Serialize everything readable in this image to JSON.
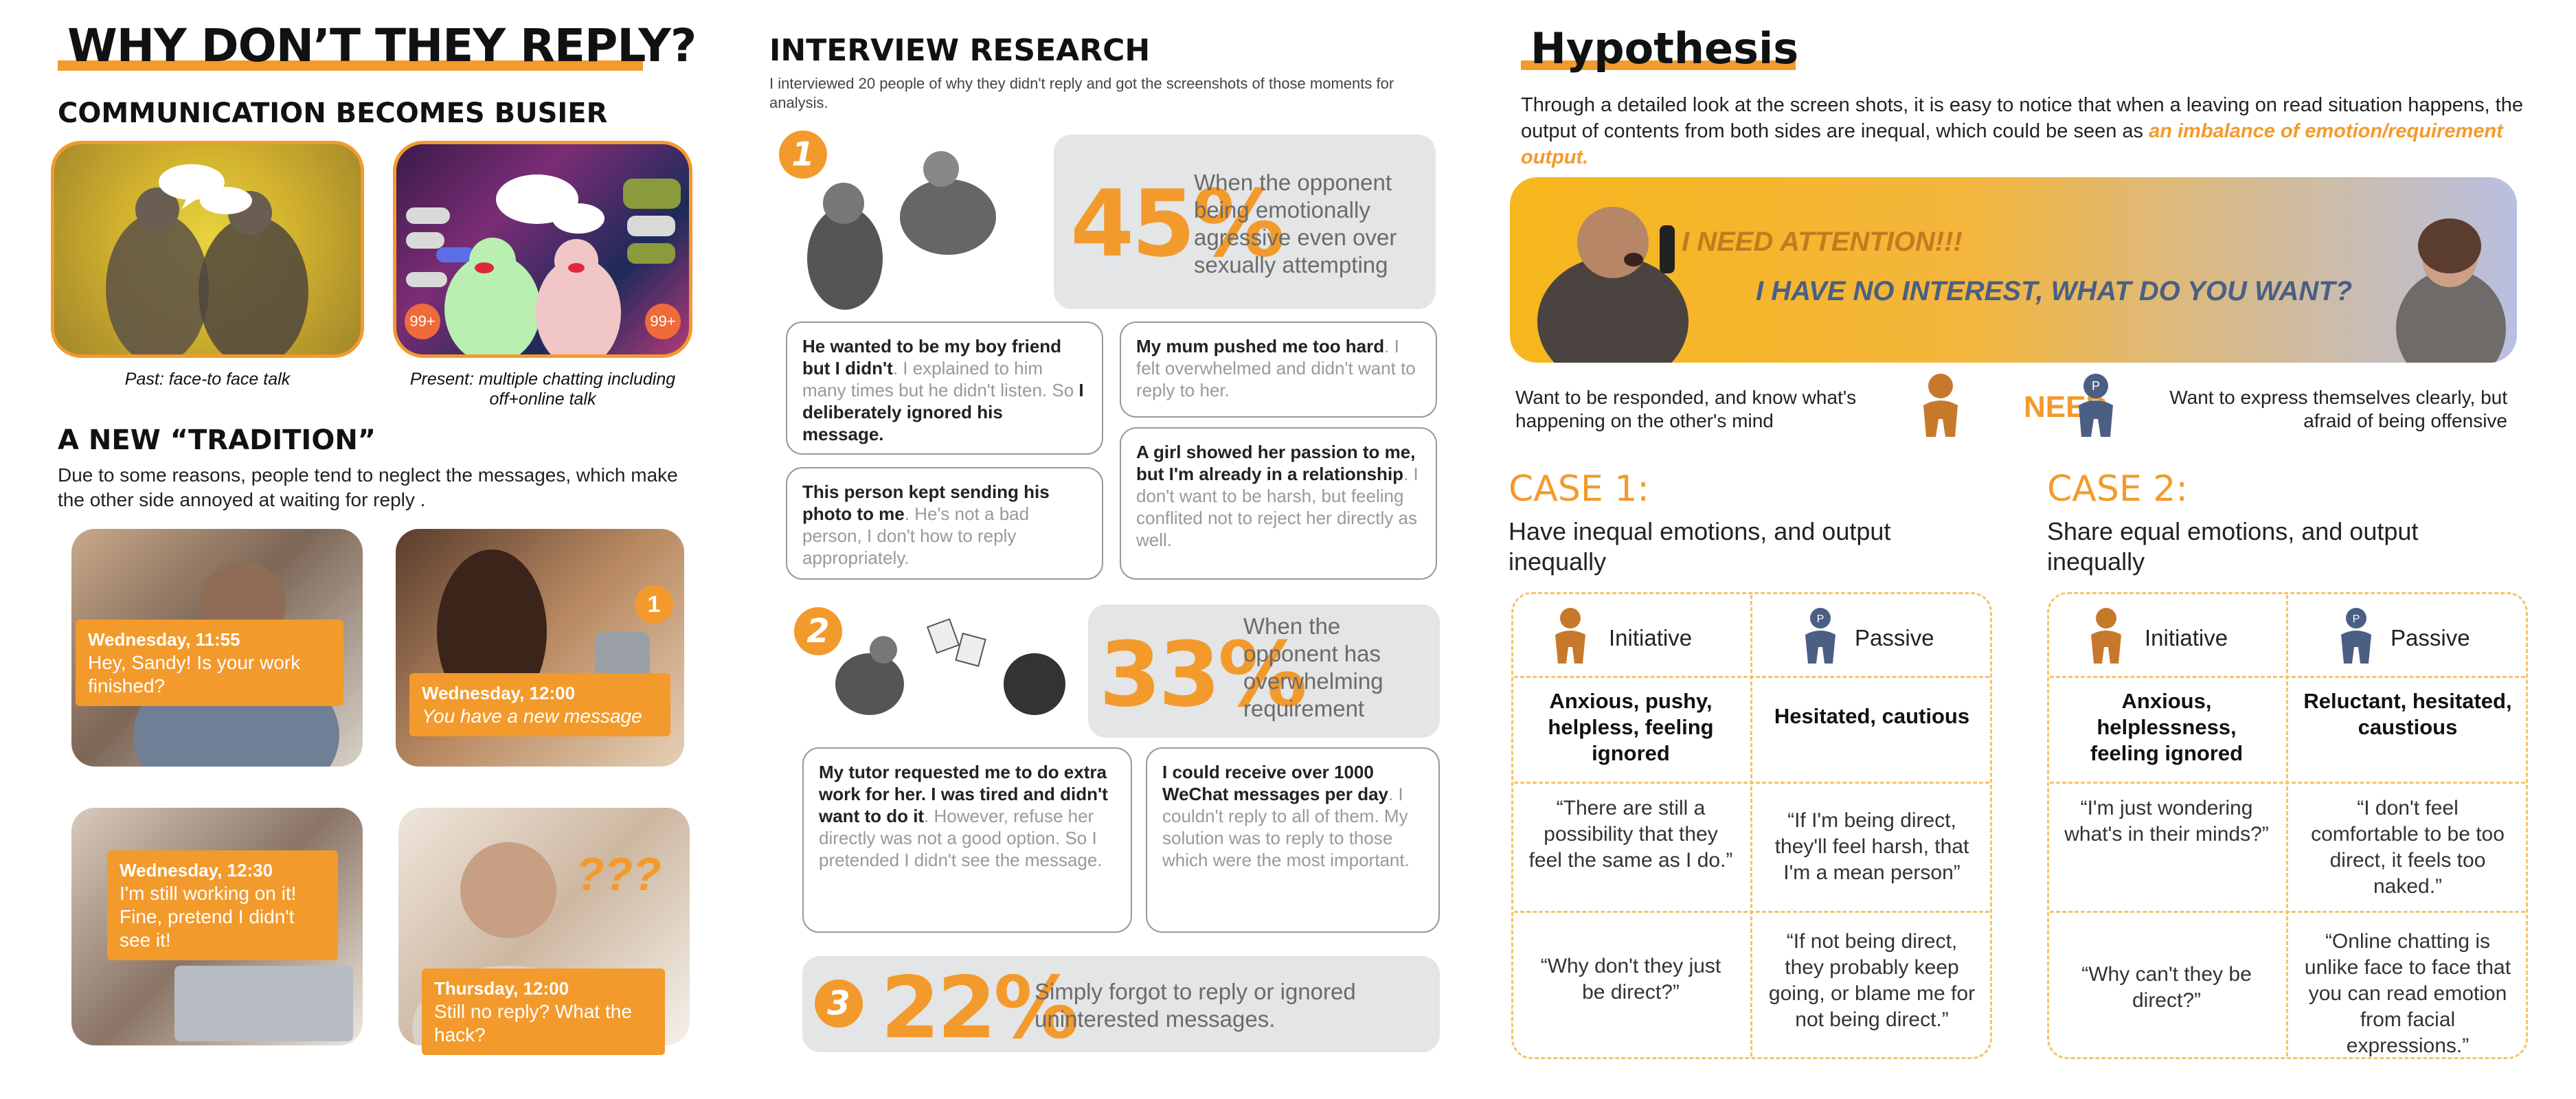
{
  "col1": {
    "title": "WHY DON’T THEY REPLY?",
    "section1_title": "COMMUNICATION BECOMES BUSIER",
    "past_caption": "Past: face-to face talk",
    "present_caption": "Present: multiple chatting including off+online talk",
    "badge": "99+",
    "section2_title": "A NEW “TRADITION”",
    "section2_text": "Due to some reasons, people tend to neglect the messages, which make the other side annoyed at waiting for reply .",
    "photos": [
      {
        "time": "Wednesday, 11:55",
        "text": "Hey, Sandy! Is your work finished?"
      },
      {
        "time": "Wednesday, 12:00",
        "text": "You have a new message",
        "badge": "1"
      },
      {
        "time": "Wednesday, 12:30",
        "text": "I'm still working on it! Fine, pretend I didn't see it!"
      },
      {
        "time": "Thursday, 12:00",
        "text": "Still no reply? What the hack?",
        "marks": "???"
      }
    ]
  },
  "col2": {
    "title": "INTERVIEW RESEARCH",
    "desc": "I interviewed 20 people of why they didn't reply and got the screenshots of those moments for analysis.",
    "stats": [
      {
        "num": "1",
        "pct": "45%",
        "text": "When the opponent being emotionally agressive even over sexually attempting"
      },
      {
        "num": "2",
        "pct": "33%",
        "text": "When the opponent has overwhelming requirement"
      },
      {
        "num": "3",
        "pct": "22%",
        "text": "Simply forgot to reply or ignored uninterested messages."
      }
    ],
    "quotes": [
      {
        "bold1": "He wanted to be my boy friend but I didn't",
        "grey1": ". I explained to him many times but he didn't listen. So ",
        "bold2": "I deliberately ignored his message."
      },
      {
        "bold1": "My mum pushed me too hard",
        "grey1": ". I felt overwhelmed and didn't want to reply to her.",
        "bold2": ""
      },
      {
        "bold1": "This person kept sending his photo to me",
        "grey1": ". He's not a bad person, I don't how to reply appropriately.",
        "bold2": ""
      },
      {
        "bold1": "A girl showed her passion to me, but I'm already in a relationship",
        "grey1": ". I don't want to be harsh, but feeling conflited not to reject her directly as well.",
        "bold2": ""
      },
      {
        "bold1": "My tutor requested me to do extra work for her. I was tired and didn't want to do it",
        "grey1": ". However, refuse her directly was not a good option. So I pretended I didn't see the message.",
        "bold2": ""
      },
      {
        "bold1": "I could receive over 1000 WeChat messages per day",
        "grey1": ". I couldn't reply to all of them. My solution was to reply to those which were the most important.",
        "bold2": ""
      }
    ]
  },
  "col3": {
    "title": "Hypothesis",
    "text_main": "Through a detailed look at the screen shots, it is easy to notice that when a leaving on read situation happens, the output of contents from both sides are inequal, which could be seen as ",
    "text_em": "an imbalance of emotion/requirement output.",
    "banner_line1": "I NEED ATTENTION!!!",
    "banner_line2": "I HAVE NO INTEREST, WHAT DO YOU WANT?",
    "need_left": "Want to be responded, and know what's happening on the other's mind",
    "need_word": "NEED",
    "need_right": "Want to express themselves clearly, but afraid of being offensive",
    "p_letter": "P",
    "cases": [
      {
        "title": "CASE 1:",
        "subtitle": "Have inequal emotions, and output inequally",
        "initiative": "Initiative",
        "passive": "Passive",
        "init_feel": "Anxious, pushy, helpless, feeling ignored",
        "pass_feel": "Hesitated, cautious",
        "init_q1": "“There are still a possibility that they feel the same as I do.”",
        "pass_q1": "“If I'm being direct, they'll feel harsh, that I'm a mean person”",
        "init_q2": "“Why don't they just be direct?”",
        "pass_q2": "“If not being direct, they probably keep going, or blame me for not being direct.”"
      },
      {
        "title": "CASE 2:",
        "subtitle": "Share equal emotions, and output inequally",
        "initiative": "Initiative",
        "passive": "Passive",
        "init_feel": "Anxious, helplessness, feeling ignored",
        "pass_feel": "Reluctant, hesitated, caustious",
        "init_q1": "“I'm just wondering what's in their minds?”",
        "pass_q1": "“I don't feel comfortable to be too direct, it feels too naked.”",
        "init_q2": "“Why can't they be direct?”",
        "pass_q2": "“Online chatting is unlike face to face that you can read emotion from facial expressions.”"
      }
    ],
    "colors": {
      "orange": "#f39a2c",
      "initiative_figure": "#c7792b",
      "passive_figure": "#4b5f84"
    }
  }
}
